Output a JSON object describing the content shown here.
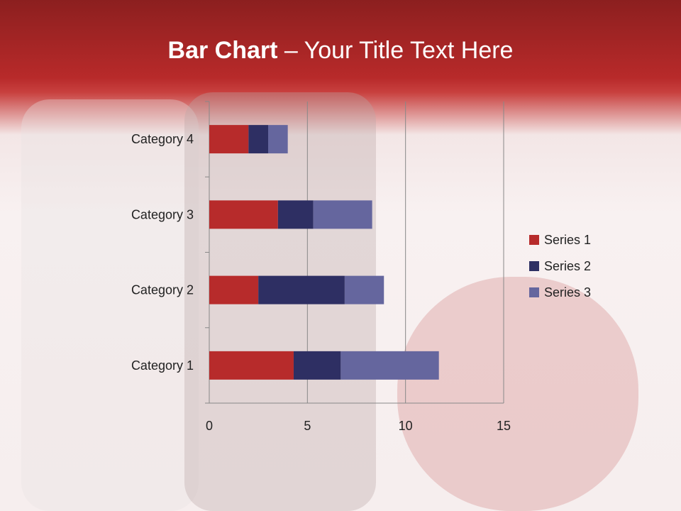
{
  "title": {
    "bold": "Bar Chart",
    "rest": " – Your Title Text Here"
  },
  "chart_data": {
    "type": "bar",
    "orientation": "horizontal",
    "stacked": true,
    "categories": [
      "Category 1",
      "Category 2",
      "Category 3",
      "Category 4"
    ],
    "series": [
      {
        "name": "Series 1",
        "color": "#b72b2b",
        "values": [
          4.3,
          2.5,
          3.5,
          2
        ]
      },
      {
        "name": "Series 2",
        "color": "#2e2f63",
        "values": [
          2.4,
          4.4,
          1.8,
          1
        ]
      },
      {
        "name": "Series 3",
        "color": "#65669e",
        "values": [
          5,
          2,
          3,
          1
        ]
      }
    ],
    "xlim": [
      0,
      15
    ],
    "xticks": [
      0,
      5,
      10,
      15
    ],
    "grid": true,
    "legend": "right"
  }
}
